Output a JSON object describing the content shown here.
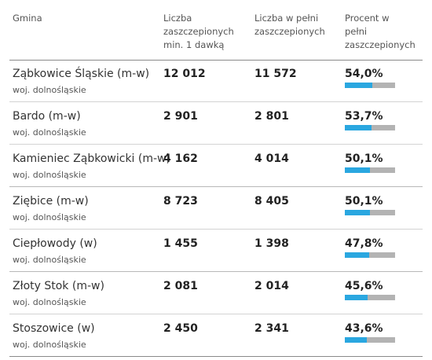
{
  "table": {
    "headers": [
      "Gmina",
      "Liczba\nzaszczepionych\nmin. 1 dawką",
      "Liczba w pełni\nzaszczepionych",
      "Procent w\npełni\nzaszczepionych"
    ],
    "colors": {
      "bar_fill": "#2aa7e0",
      "bar_track": "#b3b3b3"
    },
    "rows": [
      {
        "name": "Ząbkowice Śląskie (m-w)",
        "region": "woj. dolnośląskie",
        "dose1": "12 012",
        "full": "11 572",
        "percent": "54,0%",
        "percent_value": 54.0
      },
      {
        "name": "Bardo (m-w)",
        "region": "woj. dolnośląskie",
        "dose1": "2 901",
        "full": "2 801",
        "percent": "53,7%",
        "percent_value": 53.7
      },
      {
        "name": "Kamieniec Ząbkowicki (m-w)",
        "region": "woj. dolnośląskie",
        "dose1": "4 162",
        "full": "4 014",
        "percent": "50,1%",
        "percent_value": 50.1
      },
      {
        "name": "Ziębice (m-w)",
        "region": "woj. dolnośląskie",
        "dose1": "8 723",
        "full": "8 405",
        "percent": "50,1%",
        "percent_value": 50.1
      },
      {
        "name": "Ciepłowody (w)",
        "region": "woj. dolnośląskie",
        "dose1": "1 455",
        "full": "1 398",
        "percent": "47,8%",
        "percent_value": 47.8
      },
      {
        "name": "Złoty Stok (m-w)",
        "region": "woj. dolnośląskie",
        "dose1": "2 081",
        "full": "2 014",
        "percent": "45,6%",
        "percent_value": 45.6
      },
      {
        "name": "Stoszowice (w)",
        "region": "woj. dolnośląskie",
        "dose1": "2 450",
        "full": "2 341",
        "percent": "43,6%",
        "percent_value": 43.6
      }
    ]
  }
}
